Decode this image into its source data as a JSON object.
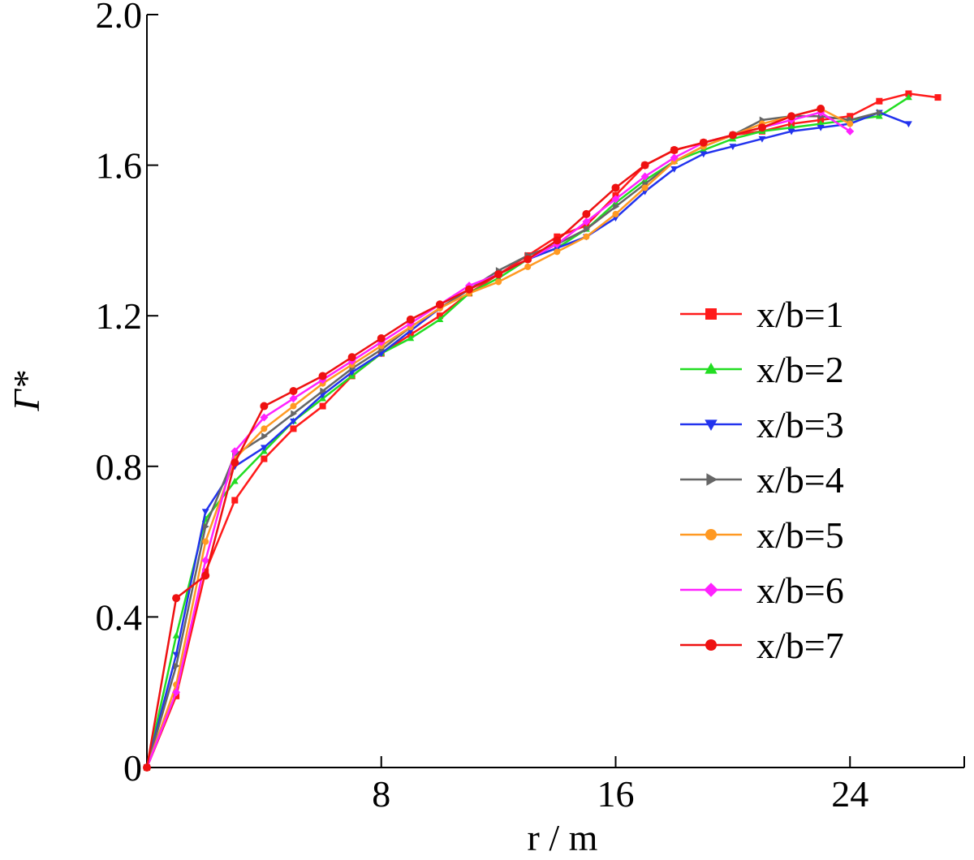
{
  "chart_data": {
    "type": "line",
    "xlabel": "r / m",
    "ylabel": "Γ*",
    "xlim": [
      0,
      27.9
    ],
    "ylim": [
      0,
      2.0
    ],
    "xticks": [
      8,
      16,
      24
    ],
    "xtick_labels": [
      "8",
      "16",
      "24"
    ],
    "yticks": [
      0,
      0.4,
      0.8,
      1.2,
      1.6,
      2.0
    ],
    "ytick_labels": [
      "0",
      "0.4",
      "0.8",
      "1.2",
      "1.6",
      "2.0"
    ],
    "grid": false,
    "legend_position": "center-right",
    "series": [
      {
        "name": "x/b=1",
        "color": "#ff1a1a",
        "marker": "square",
        "x": [
          0,
          1,
          2,
          3,
          4,
          5,
          6,
          7,
          8,
          9,
          10,
          11,
          12,
          13,
          14,
          15,
          16,
          17,
          18,
          19,
          20,
          21,
          22,
          23,
          24,
          25,
          26,
          27
        ],
        "y": [
          0,
          0.19,
          0.52,
          0.71,
          0.82,
          0.9,
          0.96,
          1.04,
          1.1,
          1.15,
          1.2,
          1.26,
          1.31,
          1.36,
          1.41,
          1.44,
          1.52,
          1.6,
          1.64,
          1.66,
          1.68,
          1.69,
          1.71,
          1.72,
          1.73,
          1.77,
          1.79,
          1.78
        ]
      },
      {
        "name": "x/b=2",
        "color": "#22dd22",
        "marker": "triangle-up",
        "x": [
          0,
          1,
          2,
          3,
          4,
          5,
          6,
          7,
          8,
          9,
          10,
          11,
          12,
          13,
          14,
          15,
          16,
          17,
          18,
          19,
          20,
          21,
          22,
          23,
          24,
          25,
          26
        ],
        "y": [
          0,
          0.35,
          0.66,
          0.76,
          0.84,
          0.92,
          0.98,
          1.04,
          1.1,
          1.14,
          1.19,
          1.26,
          1.3,
          1.35,
          1.38,
          1.43,
          1.5,
          1.56,
          1.61,
          1.64,
          1.67,
          1.69,
          1.7,
          1.71,
          1.72,
          1.73,
          1.78
        ]
      },
      {
        "name": "x/b=3",
        "color": "#2233ee",
        "marker": "triangle-down",
        "x": [
          0,
          1,
          2,
          3,
          4,
          5,
          6,
          7,
          8,
          9,
          10,
          11,
          12,
          13,
          14,
          15,
          16,
          17,
          18,
          19,
          20,
          21,
          22,
          23,
          24,
          25,
          26
        ],
        "y": [
          0,
          0.3,
          0.68,
          0.8,
          0.85,
          0.92,
          0.99,
          1.05,
          1.1,
          1.16,
          1.22,
          1.27,
          1.31,
          1.35,
          1.38,
          1.41,
          1.46,
          1.53,
          1.59,
          1.63,
          1.65,
          1.67,
          1.69,
          1.7,
          1.71,
          1.74,
          1.71
        ]
      },
      {
        "name": "x/b=4",
        "color": "#666666",
        "marker": "triangle-right",
        "x": [
          0,
          1,
          2,
          3,
          4,
          5,
          6,
          7,
          8,
          9,
          10,
          11,
          12,
          13,
          14,
          15,
          16,
          17,
          18,
          19,
          20,
          21,
          22,
          23,
          24,
          25
        ],
        "y": [
          0,
          0.27,
          0.64,
          0.83,
          0.88,
          0.94,
          1.0,
          1.06,
          1.11,
          1.17,
          1.22,
          1.27,
          1.32,
          1.36,
          1.39,
          1.43,
          1.49,
          1.55,
          1.61,
          1.65,
          1.68,
          1.72,
          1.73,
          1.73,
          1.72,
          1.74
        ]
      },
      {
        "name": "x/b=5",
        "color": "#ff9922",
        "marker": "circle",
        "x": [
          0,
          1,
          2,
          3,
          4,
          5,
          6,
          7,
          8,
          9,
          10,
          11,
          12,
          13,
          14,
          15,
          16,
          17,
          18,
          19,
          20,
          21,
          22,
          23,
          24
        ],
        "y": [
          0,
          0.22,
          0.6,
          0.82,
          0.9,
          0.96,
          1.02,
          1.07,
          1.12,
          1.17,
          1.22,
          1.26,
          1.29,
          1.33,
          1.37,
          1.41,
          1.47,
          1.54,
          1.61,
          1.65,
          1.68,
          1.71,
          1.73,
          1.75,
          1.71
        ]
      },
      {
        "name": "x/b=6",
        "color": "#ff22ff",
        "marker": "diamond",
        "x": [
          0,
          1,
          2,
          3,
          4,
          5,
          6,
          7,
          8,
          9,
          10,
          11,
          12,
          13,
          14,
          15,
          16,
          17,
          18,
          19,
          20,
          21,
          22,
          23,
          24
        ],
        "y": [
          0,
          0.2,
          0.55,
          0.84,
          0.93,
          0.98,
          1.03,
          1.08,
          1.13,
          1.18,
          1.23,
          1.28,
          1.31,
          1.35,
          1.39,
          1.45,
          1.51,
          1.57,
          1.62,
          1.66,
          1.68,
          1.7,
          1.72,
          1.74,
          1.69
        ]
      },
      {
        "name": "x/b=7",
        "color": "#ee1111",
        "marker": "circle",
        "x": [
          0,
          1,
          2,
          3,
          4,
          5,
          6,
          7,
          8,
          9,
          10,
          11,
          12,
          13,
          14,
          15,
          16,
          17,
          18,
          19,
          20,
          21,
          22,
          23
        ],
        "y": [
          0,
          0.45,
          0.51,
          0.81,
          0.96,
          1.0,
          1.04,
          1.09,
          1.14,
          1.19,
          1.23,
          1.27,
          1.31,
          1.35,
          1.4,
          1.47,
          1.54,
          1.6,
          1.64,
          1.66,
          1.68,
          1.7,
          1.73,
          1.75
        ]
      }
    ]
  }
}
